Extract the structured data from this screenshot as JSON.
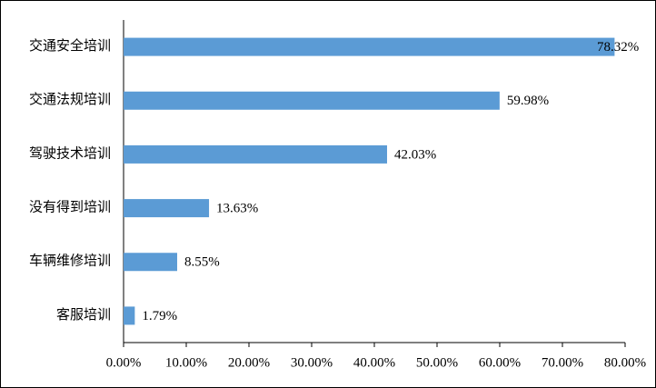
{
  "chart_data": {
    "type": "hbar",
    "categories": [
      "交通安全培训",
      "交通法规培训",
      "驾驶技术培训",
      "没有得到培训",
      "车辆维修培训",
      "客服培训"
    ],
    "values": [
      78.32,
      59.98,
      42.03,
      13.63,
      8.55,
      1.79
    ],
    "value_labels": [
      "78.32%",
      "59.98%",
      "42.03%",
      "13.63%",
      "8.55%",
      "1.79%"
    ],
    "color": "#5b9bd5",
    "xlim": [
      0,
      80
    ],
    "xticks": [
      {
        "value": 0,
        "label": "0.00%"
      },
      {
        "value": 10,
        "label": "10.00%"
      },
      {
        "value": 20,
        "label": "20.00%"
      },
      {
        "value": 30,
        "label": "30.00%"
      },
      {
        "value": 40,
        "label": "40.00%"
      },
      {
        "value": 50,
        "label": "50.00%"
      },
      {
        "value": 60,
        "label": "60.00%"
      },
      {
        "value": 70,
        "label": "70.00%"
      },
      {
        "value": 80,
        "label": "80.00%"
      }
    ]
  }
}
